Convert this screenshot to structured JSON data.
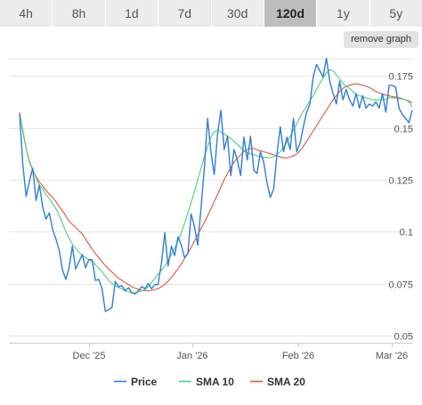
{
  "tabs": [
    {
      "label": "4h",
      "active": false
    },
    {
      "label": "8h",
      "active": false
    },
    {
      "label": "1d",
      "active": false
    },
    {
      "label": "7d",
      "active": false
    },
    {
      "label": "30d",
      "active": false
    },
    {
      "label": "120d",
      "active": true
    },
    {
      "label": "1y",
      "active": false
    },
    {
      "label": "5y",
      "active": false
    }
  ],
  "remove_graph_label": "remove graph",
  "chart_data": {
    "type": "line",
    "x_ticks": [
      "Dec '25",
      "Jan '26",
      "Feb '26",
      "Mar '26"
    ],
    "y_ticks": [
      0.05,
      0.075,
      0.1,
      0.125,
      0.15,
      0.175
    ],
    "ylim": [
      0.0465,
      0.185
    ],
    "grid": "horizontal",
    "legend_position": "bottom",
    "series": [
      {
        "name": "Price",
        "color": "#2f7ed8",
        "values": [
          0.1567,
          0.132,
          0.117,
          0.1245,
          0.1305,
          0.115,
          0.1225,
          0.112,
          0.106,
          0.109,
          0.101,
          0.0965,
          0.091,
          0.0815,
          0.077,
          0.0825,
          0.093,
          0.082,
          0.0855,
          0.089,
          0.0825,
          0.0865,
          0.0865,
          0.0765,
          0.077,
          0.0725,
          0.0615,
          0.0625,
          0.0635,
          0.076,
          0.0735,
          0.074,
          0.0715,
          0.073,
          0.0705,
          0.07,
          0.0715,
          0.0735,
          0.0725,
          0.075,
          0.0725,
          0.0745,
          0.0745,
          0.085,
          0.0995,
          0.0835,
          0.093,
          0.0885,
          0.0975,
          0.0935,
          0.0875,
          0.0895,
          0.1085,
          0.1025,
          0.0935,
          0.1115,
          0.1305,
          0.1545,
          0.1385,
          0.1275,
          0.147,
          0.1585,
          0.1395,
          0.146,
          0.127,
          0.1395,
          0.1345,
          0.127,
          0.1455,
          0.1345,
          0.146,
          0.1295,
          0.128,
          0.1385,
          0.1335,
          0.1235,
          0.1165,
          0.1205,
          0.1375,
          0.1505,
          0.1385,
          0.1455,
          0.1395,
          0.1545,
          0.1385,
          0.1425,
          0.1505,
          0.1575,
          0.1615,
          0.1745,
          0.1805,
          0.1775,
          0.1745,
          0.1835,
          0.1725,
          0.1665,
          0.1615,
          0.1725,
          0.1635,
          0.1685,
          0.1635,
          0.1605,
          0.1665,
          0.1595,
          0.1655,
          0.1595,
          0.1615,
          0.1605,
          0.1625,
          0.1595,
          0.1665,
          0.1575,
          0.1705,
          0.1705,
          0.1695,
          0.1595,
          0.1565,
          0.1545,
          0.1525,
          0.1585
        ]
      },
      {
        "name": "SMA 10",
        "color": "#4bd17c",
        "values": [
          0.1565,
          0.149,
          0.14,
          0.134,
          0.13,
          0.126,
          0.1225,
          0.1205,
          0.118,
          0.116,
          0.1135,
          0.111,
          0.108,
          0.104,
          0.1,
          0.097,
          0.094,
          0.092,
          0.09,
          0.0885,
          0.0875,
          0.0865,
          0.0855,
          0.084,
          0.0825,
          0.0805,
          0.0785,
          0.0765,
          0.075,
          0.074,
          0.073,
          0.0725,
          0.0715,
          0.071,
          0.0705,
          0.0705,
          0.071,
          0.0715,
          0.072,
          0.0735,
          0.0755,
          0.0775,
          0.0795,
          0.0815,
          0.0835,
          0.086,
          0.089,
          0.092,
          0.0955,
          0.0995,
          0.104,
          0.109,
          0.114,
          0.1195,
          0.125,
          0.1305,
          0.136,
          0.141,
          0.1455,
          0.148,
          0.149,
          0.148,
          0.147,
          0.146,
          0.145,
          0.1435,
          0.142,
          0.1405,
          0.139,
          0.138,
          0.1375,
          0.137,
          0.1365,
          0.136,
          0.1358,
          0.1356,
          0.1357,
          0.136,
          0.137,
          0.1385,
          0.1405,
          0.143,
          0.146,
          0.149,
          0.152,
          0.155,
          0.158,
          0.1605,
          0.163,
          0.1655,
          0.1685,
          0.1715,
          0.174,
          0.1765,
          0.178,
          0.1775,
          0.1755,
          0.1735,
          0.1715,
          0.17,
          0.169,
          0.1675,
          0.166,
          0.1655,
          0.165,
          0.1645,
          0.164,
          0.1635,
          0.1635,
          0.1635,
          0.1635,
          0.164,
          0.1645,
          0.1645,
          0.1642,
          0.164,
          0.1638,
          0.1635,
          0.1625,
          0.16
        ]
      },
      {
        "name": "SMA 20",
        "color": "#e9533b",
        "values": [
          0.1575,
          0.148,
          0.14,
          0.1335,
          0.1295,
          0.1265,
          0.124,
          0.122,
          0.12,
          0.118,
          0.1165,
          0.1145,
          0.112,
          0.11,
          0.1075,
          0.105,
          0.1035,
          0.102,
          0.1005,
          0.099,
          0.0965,
          0.094,
          0.0915,
          0.0895,
          0.0875,
          0.0855,
          0.0835,
          0.082,
          0.0805,
          0.079,
          0.0775,
          0.0765,
          0.0755,
          0.0745,
          0.0735,
          0.0728,
          0.0722,
          0.0718,
          0.0716,
          0.0715,
          0.0717,
          0.072,
          0.0725,
          0.0735,
          0.0745,
          0.076,
          0.078,
          0.08,
          0.082,
          0.0845,
          0.087,
          0.0895,
          0.0925,
          0.0955,
          0.0985,
          0.1015,
          0.1045,
          0.1075,
          0.111,
          0.1145,
          0.118,
          0.1215,
          0.125,
          0.128,
          0.131,
          0.1335,
          0.1355,
          0.137,
          0.1385,
          0.1395,
          0.14,
          0.14,
          0.1395,
          0.139,
          0.1385,
          0.138,
          0.1375,
          0.137,
          0.1365,
          0.136,
          0.1355,
          0.1355,
          0.136,
          0.1365,
          0.1375,
          0.139,
          0.141,
          0.1435,
          0.146,
          0.1485,
          0.151,
          0.1535,
          0.156,
          0.1585,
          0.161,
          0.1635,
          0.1655,
          0.1675,
          0.169,
          0.17,
          0.1705,
          0.171,
          0.1712,
          0.171,
          0.1705,
          0.17,
          0.1695,
          0.1685,
          0.1675,
          0.1668,
          0.1662,
          0.1658,
          0.1654,
          0.165,
          0.1648,
          0.1645,
          0.164,
          0.1635,
          0.163,
          0.162
        ]
      }
    ]
  }
}
